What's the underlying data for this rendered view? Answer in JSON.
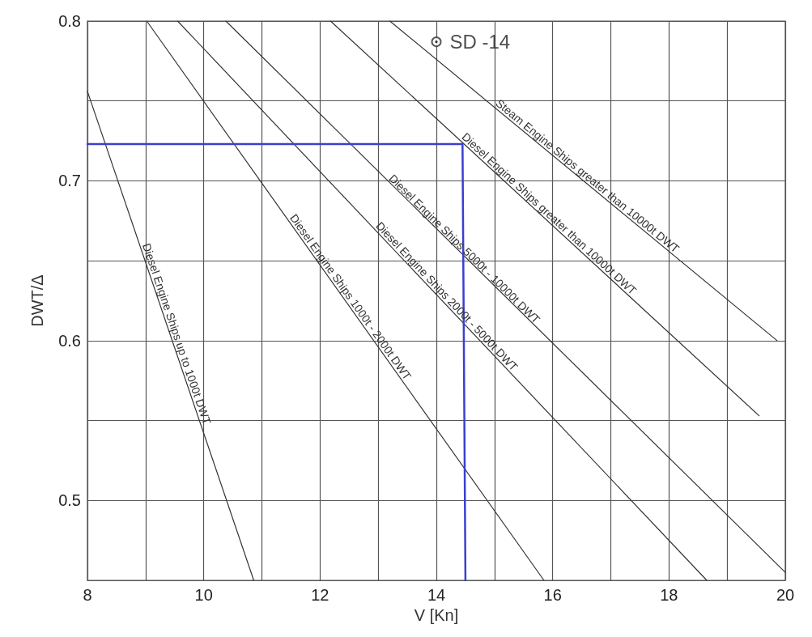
{
  "chart_data": {
    "type": "line",
    "xlabel": "V [Kn]",
    "ylabel": "DWT/Δ",
    "xlim": [
      8,
      20
    ],
    "ylim": [
      0.45,
      0.8
    ],
    "xticks": [
      8,
      {
        "value": 9,
        "label": null
      },
      10,
      {
        "value": 11,
        "label": null
      },
      12,
      {
        "value": 13,
        "label": null
      },
      14,
      {
        "value": 15,
        "label": null
      },
      16,
      {
        "value": 17,
        "label": null
      },
      18,
      {
        "value": 19,
        "label": null
      },
      20
    ],
    "yticks": [
      {
        "value": 0.45,
        "label": null
      },
      0.5,
      {
        "value": 0.55,
        "label": null
      },
      0.6,
      {
        "value": 0.65,
        "label": null
      },
      0.7,
      {
        "value": 0.75,
        "label": null
      },
      0.8
    ],
    "grid": true,
    "marker": "none",
    "line_style": "solid",
    "series": [
      {
        "name": "Diesel Engine Ships up to 1000t DWT",
        "color": "#333333",
        "x": [
          8,
          10.86
        ],
        "values": [
          0.756,
          0.45
        ]
      },
      {
        "name": "Diesel Engine Ships 1000t - 2000t DWT",
        "color": "#333333",
        "x": [
          9.02,
          15.85
        ],
        "values": [
          0.8,
          0.45
        ]
      },
      {
        "name": "Diesel Engine Ships 2000t - 5000t DWT",
        "color": "#333333",
        "x": [
          9.55,
          18.65
        ],
        "values": [
          0.8,
          0.45
        ]
      },
      {
        "name": "Diesel Engine Ships 5000t - 10000t DWT",
        "color": "#333333",
        "x": [
          10.38,
          20
        ],
        "values": [
          0.8,
          0.455
        ]
      },
      {
        "name": "Diesel Engine Ships greater than 10000t DWT",
        "color": "#333333",
        "x": [
          12.18,
          19.55
        ],
        "values": [
          0.8,
          0.553
        ]
      },
      {
        "name": "Steam Engine Ships greater than 10000t DWT",
        "color": "#333333",
        "x": [
          13.2,
          19.86
        ],
        "values": [
          0.8,
          0.6
        ]
      },
      {
        "color": "#3a3fd0",
        "x": [
          8,
          14.45,
          14.5
        ],
        "values": [
          0.723,
          0.723,
          0.45
        ]
      }
    ],
    "annotations": [
      {
        "text": "SD -14",
        "x": 14,
        "y": 0.787
      }
    ]
  }
}
